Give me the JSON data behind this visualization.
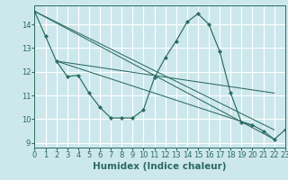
{
  "title": "",
  "xlabel": "Humidex (Indice chaleur)",
  "xlim": [
    0,
    23
  ],
  "ylim": [
    8.8,
    14.8
  ],
  "yticks": [
    9,
    10,
    11,
    12,
    13,
    14
  ],
  "xticks": [
    0,
    1,
    2,
    3,
    4,
    5,
    6,
    7,
    8,
    9,
    10,
    11,
    12,
    13,
    14,
    15,
    16,
    17,
    18,
    19,
    20,
    21,
    22,
    23
  ],
  "background_color": "#cde8ed",
  "grid_color": "#ffffff",
  "line_color": "#2a6b60",
  "main_line": {
    "x": [
      0,
      1,
      2,
      3,
      4,
      5,
      6,
      7,
      8,
      9,
      10,
      11,
      12,
      13,
      14,
      15,
      16,
      17,
      18,
      19,
      20,
      21,
      22,
      23
    ],
    "y": [
      14.55,
      13.5,
      12.45,
      11.8,
      11.85,
      11.1,
      10.5,
      10.05,
      10.05,
      10.05,
      10.4,
      11.75,
      12.6,
      13.3,
      14.1,
      14.45,
      14.0,
      12.85,
      11.1,
      9.85,
      9.75,
      9.5,
      9.15,
      9.55
    ]
  },
  "diag_lines": [
    {
      "x": [
        0,
        22
      ],
      "y": [
        14.55,
        9.15
      ]
    },
    {
      "x": [
        0,
        22
      ],
      "y": [
        14.55,
        9.55
      ]
    },
    {
      "x": [
        2,
        22
      ],
      "y": [
        12.45,
        11.1
      ]
    },
    {
      "x": [
        2,
        20
      ],
      "y": [
        12.45,
        9.75
      ]
    }
  ],
  "fontsize_ticks": 6,
  "fontsize_label": 7.5
}
